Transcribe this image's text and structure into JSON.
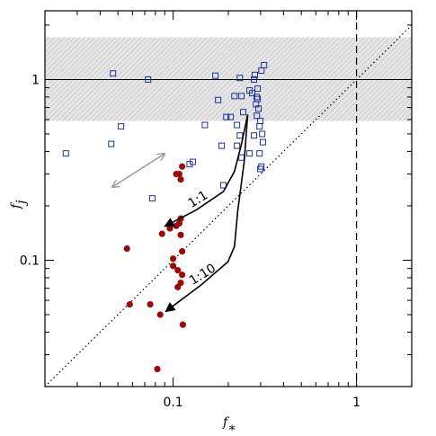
{
  "chart_data": {
    "type": "scatter",
    "xlabel": {
      "text": "f",
      "sub": "∗"
    },
    "ylabel": {
      "text": "f",
      "sub": "j"
    },
    "xscale": "log",
    "yscale": "log",
    "xlim": [
      0.02,
      2
    ],
    "ylim": [
      0.02,
      2.4
    ],
    "xticks": [
      0.1,
      1
    ],
    "yticks": [
      0.1,
      1
    ],
    "band": {
      "ylim": [
        0.59,
        1.71
      ],
      "color": "#bbbbbb"
    },
    "hlines": [
      1
    ],
    "vlines": [
      1
    ],
    "identity_line": true,
    "series": [
      {
        "color": "#1f2fa0",
        "marker": "square",
        "x": [
          0.026,
          0.047,
          0.052,
          0.046,
          0.073,
          0.077,
          0.123,
          0.149,
          0.17,
          0.176,
          0.184,
          0.195,
          0.188,
          0.231,
          0.236,
          0.216,
          0.206,
          0.223,
          0.223,
          0.236,
          0.231,
          0.241,
          0.261,
          0.27,
          0.276,
          0.279,
          0.289,
          0.283,
          0.292,
          0.286,
          0.299,
          0.296,
          0.306,
          0.309,
          0.303,
          0.299,
          0.296,
          0.276,
          0.261,
          0.313,
          0.303,
          0.286,
          0.289,
          0.128
        ],
        "y": [
          0.39,
          1.08,
          0.55,
          0.44,
          1.0,
          0.22,
          0.34,
          0.56,
          1.05,
          0.77,
          0.43,
          0.62,
          0.26,
          1.02,
          0.81,
          0.81,
          0.62,
          0.56,
          0.43,
          0.37,
          0.49,
          0.66,
          0.87,
          0.84,
          1.0,
          1.06,
          0.89,
          0.73,
          0.69,
          0.63,
          0.59,
          0.55,
          0.5,
          0.45,
          0.33,
          0.32,
          0.39,
          0.49,
          0.39,
          1.2,
          1.12,
          0.8,
          0.78,
          0.35
        ]
      },
      {
        "color": "#9b0a0a",
        "marker": "circle",
        "x": [
          0.112,
          0.104,
          0.108,
          0.11,
          0.11,
          0.108,
          0.104,
          0.096,
          0.087,
          0.11,
          0.056,
          0.112,
          0.1,
          0.1,
          0.106,
          0.112,
          0.11,
          0.106,
          0.058,
          0.075,
          0.085,
          0.113,
          0.082
        ],
        "y": [
          0.33,
          0.3,
          0.3,
          0.28,
          0.17,
          0.16,
          0.155,
          0.15,
          0.14,
          0.138,
          0.116,
          0.112,
          0.102,
          0.093,
          0.088,
          0.083,
          0.075,
          0.071,
          0.057,
          0.057,
          0.05,
          0.044,
          0.025
        ]
      }
    ],
    "tracks": [
      {
        "label": "1:1",
        "x": [
          0.255,
          0.236,
          0.216,
          0.188,
          0.134,
          0.09
        ],
        "y": [
          0.64,
          0.44,
          0.31,
          0.24,
          0.19,
          0.154
        ]
      },
      {
        "label": "1:10",
        "x": [
          0.255,
          0.244,
          0.225,
          0.216,
          0.199,
          0.142,
          0.091
        ],
        "y": [
          0.64,
          0.35,
          0.187,
          0.119,
          0.098,
          0.073,
          0.052
        ]
      }
    ]
  }
}
